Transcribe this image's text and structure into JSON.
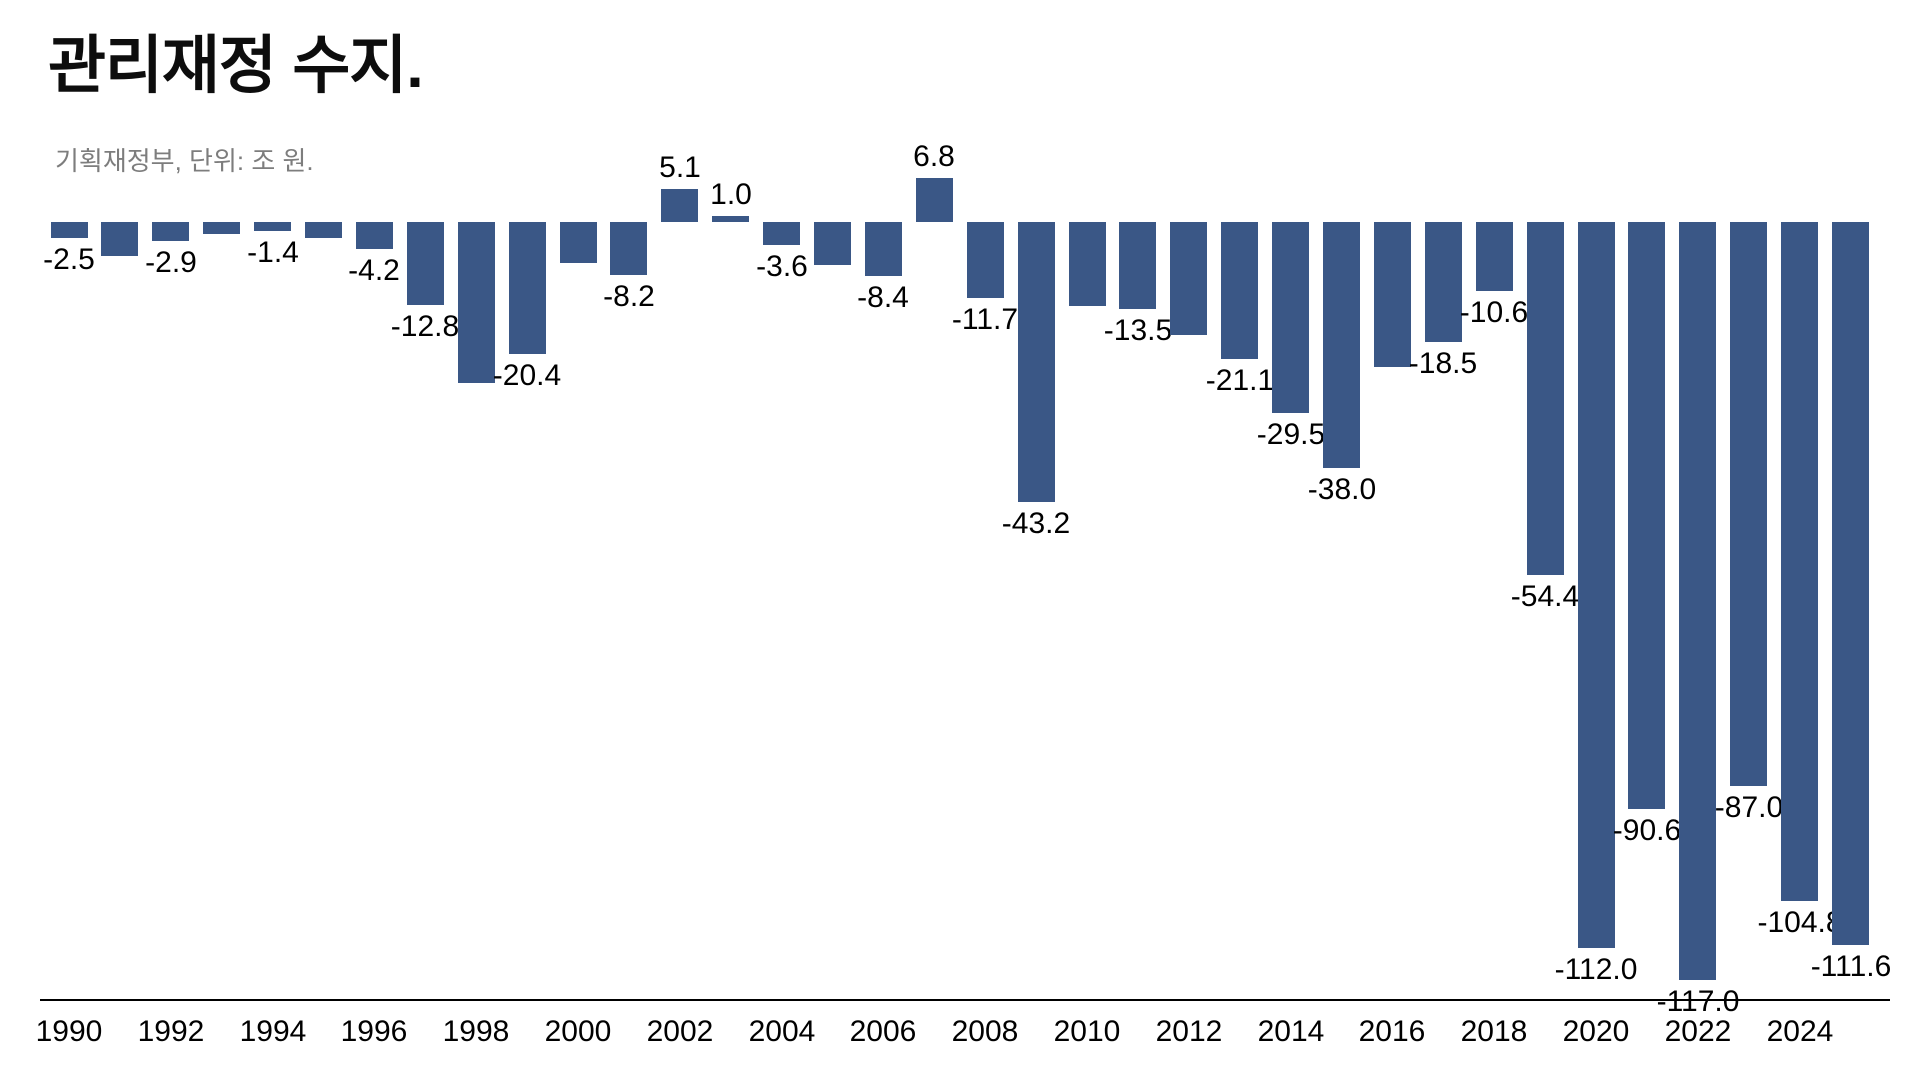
{
  "header": {
    "title": "관리재정 수지.",
    "subtitle": "기획재정부, 단위: 조 원."
  },
  "colors": {
    "bar": "#3A5786",
    "title_text": "#0d0d0d",
    "subtitle_text": "#7d7d7d",
    "axis_line": "#000000",
    "data_label": "#000000"
  },
  "chart_data": {
    "type": "bar",
    "title": "관리재정 수지.",
    "source_note": "기획재정부, 단위: 조 원.",
    "unit": "조 원 (trillion KRW)",
    "grid": false,
    "legend": false,
    "ylim": [
      -120,
      10
    ],
    "x_tick_labels": [
      "1990",
      "1992",
      "1994",
      "1996",
      "1998",
      "2000",
      "2002",
      "2004",
      "2006",
      "2008",
      "2010",
      "2012",
      "2014",
      "2016",
      "2018",
      "2020",
      "2022",
      "2024"
    ],
    "years": [
      1990,
      1991,
      1992,
      1993,
      1994,
      1995,
      1996,
      1997,
      1998,
      1999,
      2000,
      2001,
      2002,
      2003,
      2004,
      2005,
      2006,
      2007,
      2008,
      2009,
      2010,
      2011,
      2012,
      2013,
      2014,
      2015,
      2016,
      2017,
      2018,
      2019,
      2020,
      2021,
      2022,
      2023,
      2024,
      2025
    ],
    "values": [
      -2.5,
      -5.3,
      -2.9,
      -1.9,
      -1.4,
      -2.4,
      -4.2,
      -12.8,
      -24.9,
      -20.4,
      -6.3,
      -8.2,
      5.1,
      1.0,
      -3.6,
      -6.7,
      -8.4,
      6.8,
      -11.7,
      -43.2,
      -13.0,
      -13.5,
      -17.4,
      -21.1,
      -29.5,
      -38.0,
      -22.4,
      -18.5,
      -10.6,
      -54.4,
      -112.0,
      -90.6,
      -117.0,
      -87.0,
      -104.8,
      -111.6
    ],
    "data_labels": [
      "-2.5",
      null,
      "-2.9",
      null,
      "-1.4",
      null,
      "-4.2",
      "-12.8",
      null,
      "-20.4",
      null,
      "-8.2",
      "5.1",
      "1.0",
      "-3.6",
      null,
      "-8.4",
      "6.8",
      "-11.7",
      "-43.2",
      null,
      "-13.5",
      null,
      "-21.1",
      "-29.5",
      "-38.0",
      null,
      "-18.5",
      "-10.6",
      "-54.4",
      "-112.0",
      "-90.6",
      "-117.0",
      "-87.0",
      "-104.8",
      "-111.6"
    ]
  }
}
